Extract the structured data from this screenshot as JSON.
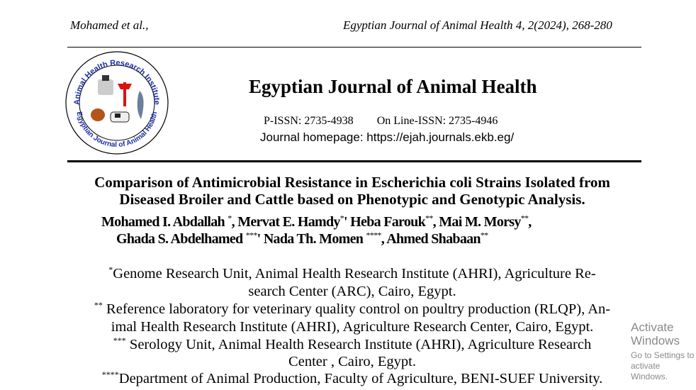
{
  "running_header": {
    "left": "Mohamed et al.,",
    "right": "Egyptian Journal of Animal Health 4, 2(2024), 268-280"
  },
  "logo": {
    "top_text": "Animal Health Research Institute",
    "bottom_text": "Egyptian Journal of Animal Health"
  },
  "journal": {
    "title": "Egyptian Journal of Animal Health",
    "p_issn": "P-ISSN:  2735-4938",
    "online_issn": "On Line-ISSN:  2735-4946",
    "homepage": "Journal homepage: https://ejah.journals.ekb.eg/"
  },
  "paper_title": [
    "Comparison of Antimicrobial Resistance in Escherichia coli Strains Isolated from",
    "Diseased Broiler and Cattle based on Phenotypic and Genotypic Analysis."
  ],
  "authors": [
    {
      "name": "Mohamed I. Abdallah ",
      "mark": "*",
      "sep": ", "
    },
    {
      "name": "Mervat E. Hamdy",
      "mark": "*",
      "sep": "' "
    },
    {
      "name": "Heba Farouk",
      "mark": "**",
      "sep": ", "
    },
    {
      "name": "Mai M. Morsy",
      "mark": "**",
      "sep": ","
    },
    {
      "name": "Ghada S. Abdelhamed ",
      "mark": "***",
      "sep": "' "
    },
    {
      "name": "Nada Th. Momen ",
      "mark": "****",
      "sep": ", "
    },
    {
      "name": "Ahmed Shabaan",
      "mark": "**",
      "sep": ""
    }
  ],
  "affiliations": [
    {
      "mark": "*",
      "lines": [
        "Genome Research Unit, Animal Health Research Institute (AHRI), Agriculture Re-",
        "search Center (ARC), Cairo, Egypt."
      ]
    },
    {
      "mark": "**",
      "lines": [
        " Reference laboratory for veterinary quality control on poultry production (RLQP), An-",
        "imal Health Research Institute (AHRI), Agriculture Research Center, Cairo, Egypt."
      ]
    },
    {
      "mark": "***",
      "lines": [
        " Serology Unit, Animal Health Research Institute (AHRI), Agriculture Research",
        "Center , Cairo, Egypt."
      ]
    },
    {
      "mark": "****",
      "lines": [
        "Department of Animal Production, Faculty of Agriculture, BENI-SUEF University."
      ]
    }
  ],
  "watermark": {
    "line1": "Activate Windows",
    "line2": "Go to Settings to activate Windows."
  }
}
